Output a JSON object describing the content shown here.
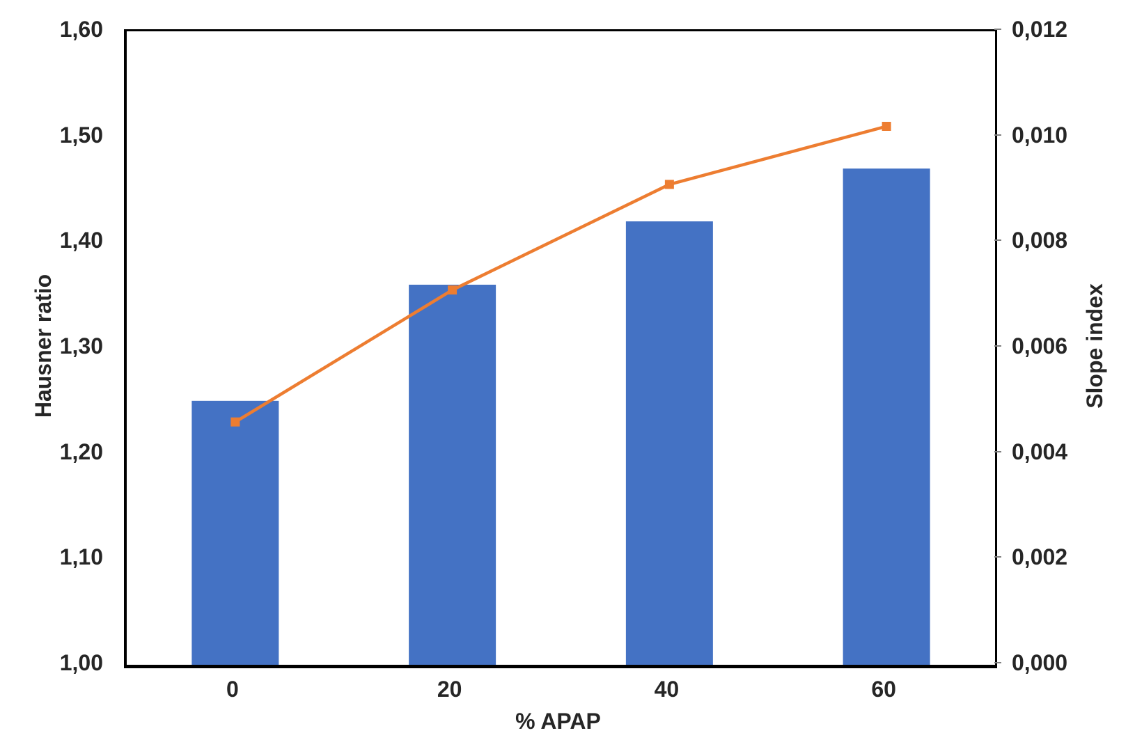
{
  "chart_data": {
    "type": "bar",
    "subtype": "bar-line-combo",
    "categories": [
      "0",
      "20",
      "40",
      "60"
    ],
    "series": [
      {
        "name": "Hausner ratio",
        "type": "bar",
        "axis": "left",
        "color": "#4472C4",
        "values": [
          1.25,
          1.36,
          1.42,
          1.47
        ]
      },
      {
        "name": "Slope index",
        "type": "line",
        "axis": "right",
        "color": "#ED7D31",
        "marker": "square",
        "values": [
          0.0046,
          0.0071,
          0.0091,
          0.0102
        ]
      }
    ],
    "left_axis": {
      "title": "Hausner ratio",
      "min": 1.0,
      "max": 1.6,
      "tick_step": 0.1,
      "tick_labels": [
        "1,00",
        "1,10",
        "1,20",
        "1,30",
        "1,40",
        "1,50",
        "1,60"
      ]
    },
    "right_axis": {
      "title": "Slope index",
      "min": 0.0,
      "max": 0.012,
      "tick_step": 0.002,
      "tick_labels": [
        "0,000",
        "0,002",
        "0,004",
        "0,006",
        "0,008",
        "0,010",
        "0,012"
      ]
    },
    "x_axis": {
      "title": "% APAP"
    },
    "grid": false,
    "legend": false,
    "decimal_separator": ",",
    "background": "#FFFFFF",
    "text_color": "#262626",
    "axis_line_color": "#000000"
  }
}
